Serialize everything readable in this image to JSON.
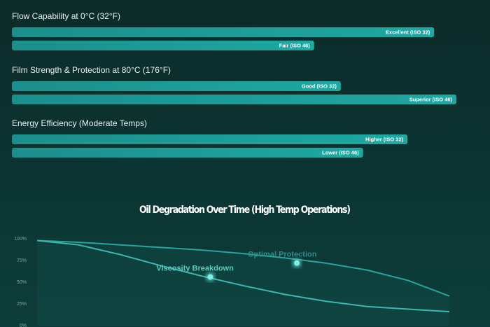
{
  "comparisons": {
    "scale": [
      0,
      100
    ],
    "groups": [
      {
        "title": "Flow Capability at 0°C (32°F)",
        "bars": [
          {
            "label": "Excellent (ISO 32)",
            "value": 95
          },
          {
            "label": "Fair (ISO 46)",
            "value": 68
          }
        ]
      },
      {
        "title": "Film Strength & Protection at 80°C (176°F)",
        "bars": [
          {
            "label": "Good (ISO 32)",
            "value": 74
          },
          {
            "label": "Superior (ISO 46)",
            "value": 100
          }
        ]
      },
      {
        "title": "Energy Efficiency (Moderate Temps)",
        "bars": [
          {
            "label": "Higher (ISO 32)",
            "value": 89
          },
          {
            "label": "Lower (ISO 46)",
            "value": 79
          }
        ]
      }
    ]
  },
  "chart_data": {
    "type": "line",
    "title": "Oil Degradation Over Time (High Temp Operations)",
    "x": [
      0,
      1,
      2,
      3,
      4,
      5,
      6,
      7,
      8,
      9,
      10
    ],
    "xlim": [
      0,
      10
    ],
    "ylim": [
      0,
      100
    ],
    "yticks": [
      {
        "value": 100,
        "label": "100%"
      },
      {
        "value": 75,
        "label": "75%"
      },
      {
        "value": 50,
        "label": "50%"
      },
      {
        "value": 25,
        "label": "25%"
      },
      {
        "value": 0,
        "label": "0%"
      }
    ],
    "series": [
      {
        "name": "Optimal Protection",
        "color": "#2aa39c",
        "values": [
          98,
          96,
          93,
          90,
          87,
          83,
          78,
          72,
          64,
          52,
          34
        ],
        "marker": {
          "x": 6.3,
          "y": 72
        }
      },
      {
        "name": "Viscosity Breakdown",
        "color": "#3bb8b0",
        "values": [
          98,
          93,
          82,
          69,
          57,
          46,
          36,
          28,
          22,
          19,
          16
        ],
        "marker": {
          "x": 4.2,
          "y": 56
        }
      }
    ]
  }
}
